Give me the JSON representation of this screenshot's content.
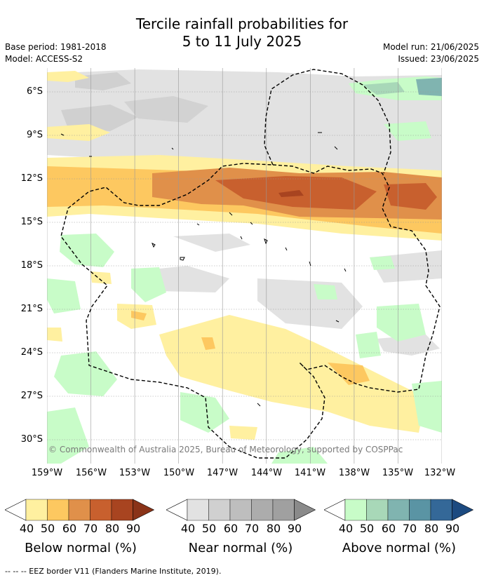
{
  "title_line1": "Tercile rainfall probabilities for",
  "title_line2": "5 to 11 July 2025",
  "meta": {
    "base_period": "Base period: 1981-2018",
    "model": "Model: ACCESS-S2",
    "model_run": "Model run: 21/06/2025",
    "issued": "Issued: 23/06/2025"
  },
  "map": {
    "copyright": "© Commonwealth of Australia 2025, Bureau of Meteorology, supported by COSPPac",
    "lat_labels": [
      "6°S",
      "9°S",
      "12°S",
      "15°S",
      "18°S",
      "21°S",
      "24°S",
      "27°S",
      "30°S"
    ],
    "lon_labels": [
      "159°W",
      "156°W",
      "153°W",
      "150°W",
      "147°W",
      "144°W",
      "141°W",
      "138°W",
      "135°W",
      "132°W"
    ],
    "lat_range": [
      -32.0,
      -4.8
    ],
    "lon_range": [
      -159.0,
      -132.0
    ]
  },
  "colors": {
    "below": [
      "#fff0a0",
      "#fdc860",
      "#e0904a",
      "#c8602e",
      "#a84420",
      "#8a3318"
    ],
    "near": [
      "#e2e2e2",
      "#d0d0d0",
      "#bebebe",
      "#acacac",
      "#a0a0a0",
      "#8a8a8a"
    ],
    "above": [
      "#c8fcc8",
      "#a8d8b8",
      "#80b4b0",
      "#5a94a4",
      "#346898",
      "#1c4a80"
    ]
  },
  "legends": [
    {
      "title": "Below normal (%)",
      "ticks": [
        "40",
        "50",
        "60",
        "70",
        "80",
        "90"
      ]
    },
    {
      "title": "Near normal (%)",
      "ticks": [
        "40",
        "50",
        "60",
        "70",
        "80",
        "90"
      ]
    },
    {
      "title": "Above normal (%)",
      "ticks": [
        "40",
        "50",
        "60",
        "70",
        "80",
        "90"
      ]
    }
  ],
  "footer": "-- -- -- EEZ border V11 (Flanders Marine Institute, 2019)."
}
